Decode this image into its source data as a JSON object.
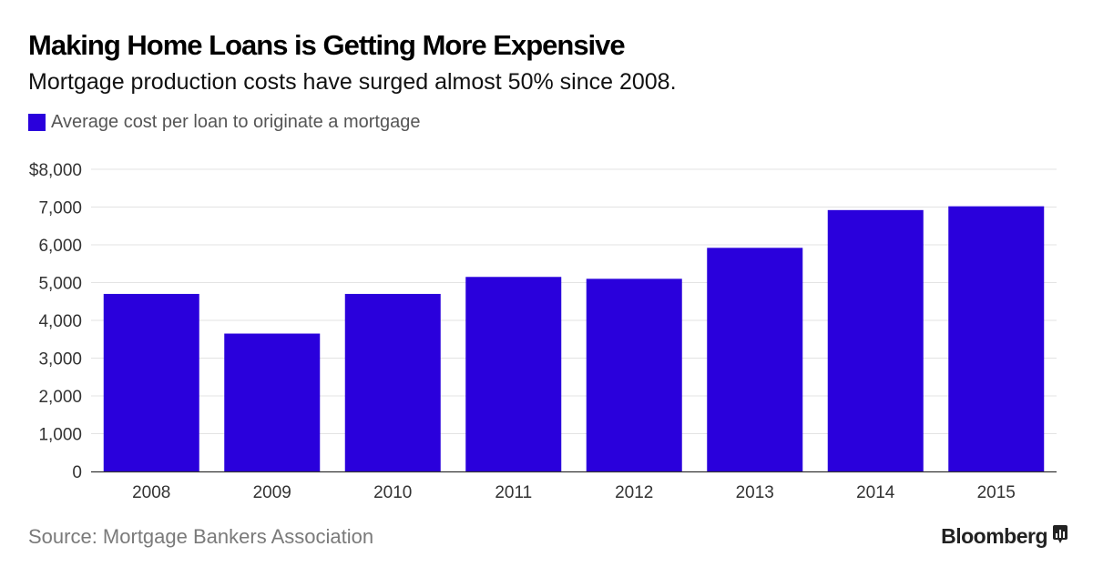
{
  "header": {
    "title": "Making Home Loans is Getting More Expensive",
    "subtitle": "Mortgage production costs have surged almost 50% since 2008."
  },
  "legend": {
    "label": "Average cost per loan to originate a mortgage",
    "color": "#2a00dc"
  },
  "footer": {
    "source": "Source: Mortgage Bankers Association",
    "brand": "Bloomberg",
    "brand_icon": "bloomberg-chart-icon"
  },
  "chart_data": {
    "type": "bar",
    "categories": [
      "2008",
      "2009",
      "2010",
      "2011",
      "2012",
      "2013",
      "2014",
      "2015"
    ],
    "series": [
      {
        "name": "Average cost per loan to originate a mortgage",
        "values": [
          4700,
          3650,
          4700,
          5150,
          5100,
          5920,
          6920,
          7020
        ],
        "color": "#2a00dc"
      }
    ],
    "ylim": [
      0,
      8000
    ],
    "yticks": [
      0,
      1000,
      2000,
      3000,
      4000,
      5000,
      6000,
      7000,
      8000
    ],
    "ytick_labels": [
      "0",
      "1,000",
      "2,000",
      "3,000",
      "4,000",
      "5,000",
      "6,000",
      "7,000",
      "$8,000"
    ],
    "grid": true,
    "legend_position": "top-left"
  }
}
